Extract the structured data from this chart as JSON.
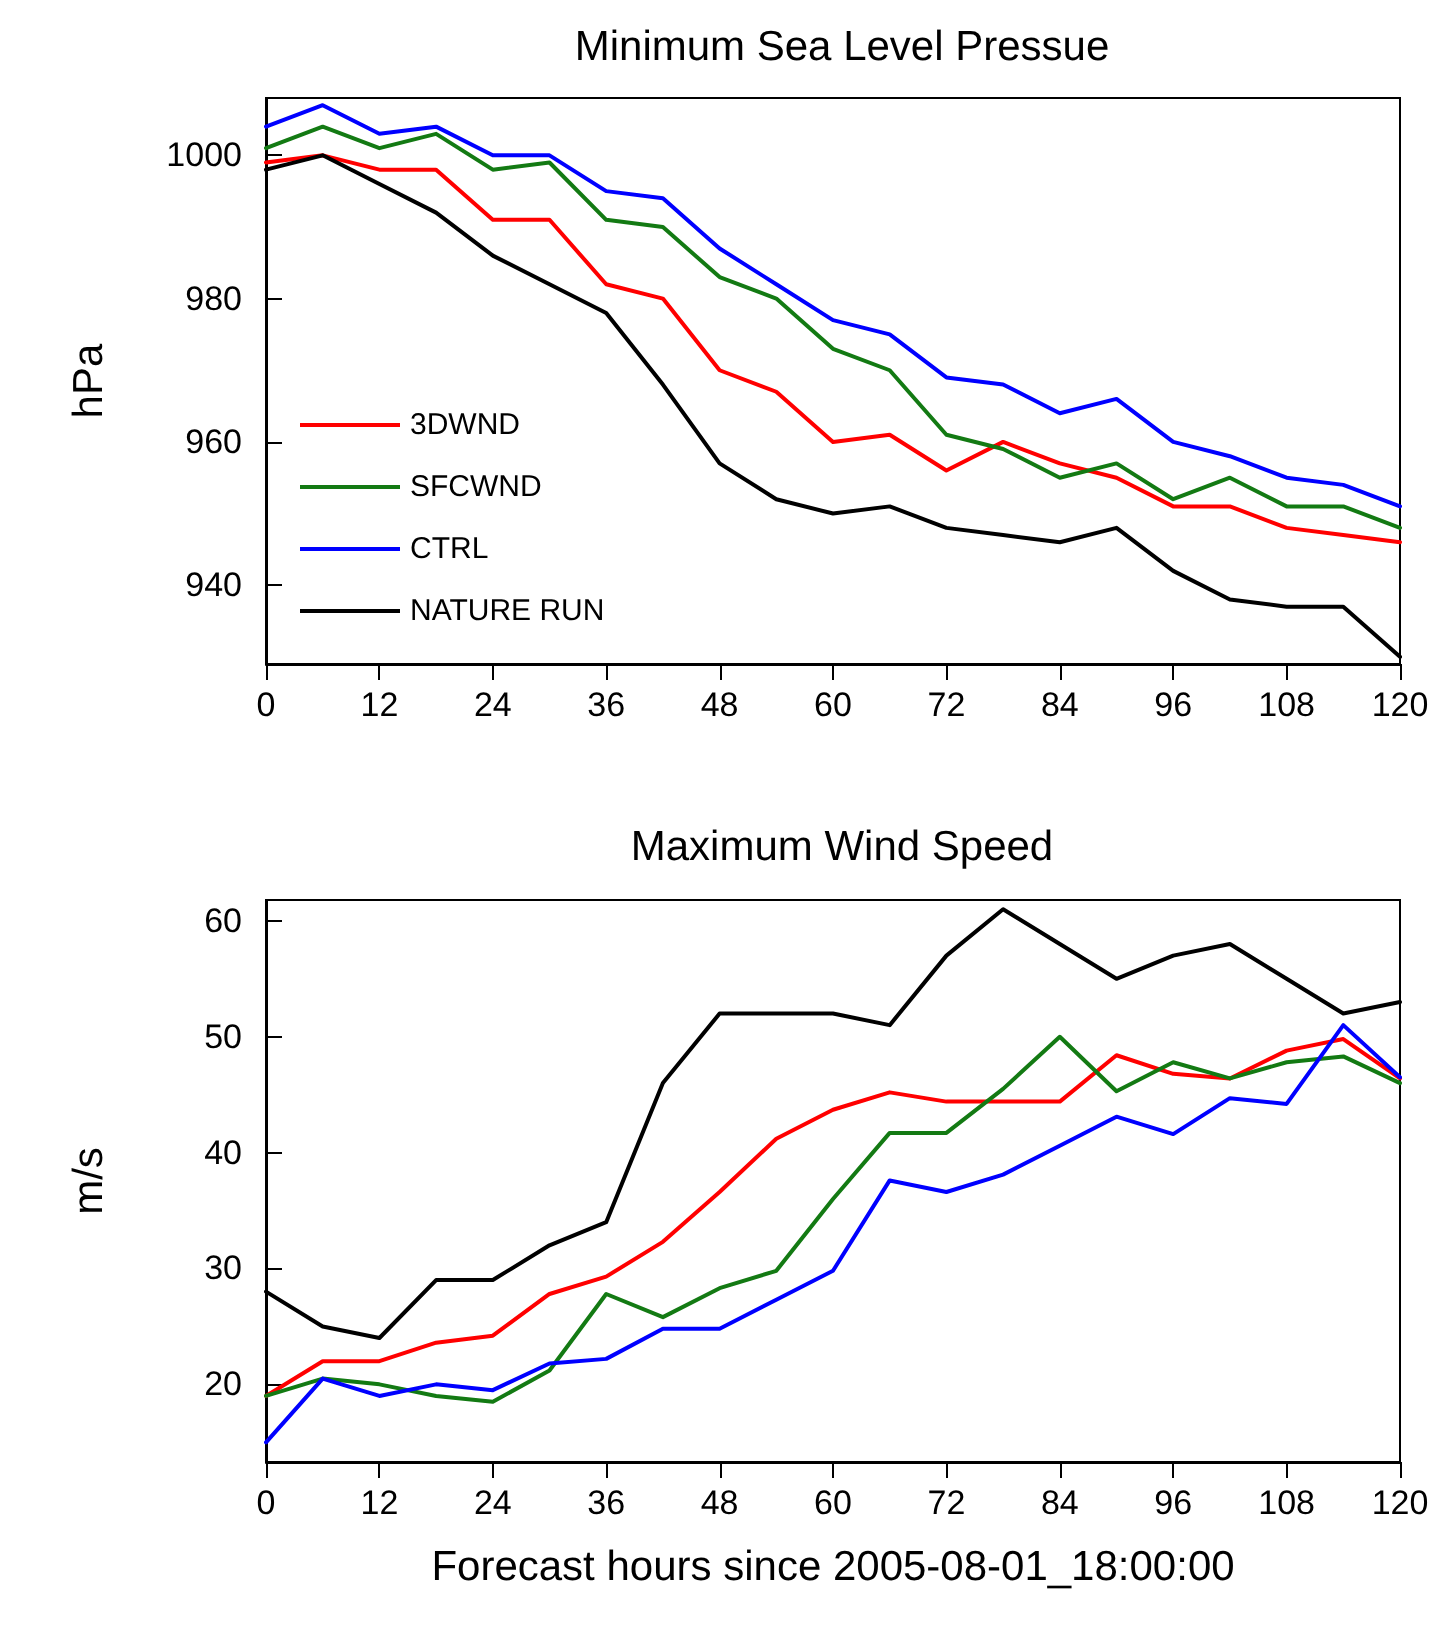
{
  "chart_data": [
    {
      "type": "line",
      "title": "Minimum Sea Level Pressue",
      "ylabel": "hPa",
      "x": [
        0,
        6,
        12,
        18,
        24,
        30,
        36,
        42,
        48,
        54,
        60,
        66,
        72,
        78,
        84,
        90,
        96,
        102,
        108,
        114,
        120
      ],
      "xlim": [
        0,
        120
      ],
      "xticks": [
        0,
        12,
        24,
        36,
        48,
        60,
        72,
        84,
        96,
        108,
        120
      ],
      "ylim": [
        929,
        1008
      ],
      "yticks": [
        940,
        960,
        980,
        1000
      ],
      "legend": "left",
      "grid": false,
      "marker": "none",
      "line_style": "solid",
      "series": [
        {
          "name": "3DWND",
          "color": "#ff0000",
          "values": [
            999,
            1000,
            998,
            998,
            991,
            991,
            982,
            980,
            970,
            967,
            960,
            961,
            956,
            960,
            957,
            955,
            951,
            951,
            948,
            947,
            946
          ]
        },
        {
          "name": "SFCWND",
          "color": "#137a13",
          "values": [
            1001,
            1004,
            1001,
            1003,
            998,
            999,
            991,
            990,
            983,
            980,
            973,
            970,
            961,
            959,
            955,
            957,
            952,
            955,
            951,
            951,
            948
          ]
        },
        {
          "name": "CTRL",
          "color": "#0000ff",
          "values": [
            1004,
            1007,
            1003,
            1004,
            1000,
            1000,
            995,
            994,
            987,
            982,
            977,
            975,
            969,
            968,
            964,
            966,
            960,
            958,
            955,
            954,
            951
          ]
        },
        {
          "name": "NATURE RUN",
          "color": "#000000",
          "values": [
            998,
            1000,
            996,
            992,
            986,
            982,
            978,
            968,
            957,
            952,
            950,
            951,
            948,
            947,
            946,
            948,
            942,
            938,
            937,
            937,
            930
          ]
        }
      ]
    },
    {
      "type": "line",
      "title": "Maximum Wind Speed",
      "ylabel": "m/s",
      "xlabel": "Forecast hours since 2005-08-01_18:00:00",
      "x": [
        0,
        6,
        12,
        18,
        24,
        30,
        36,
        42,
        48,
        54,
        60,
        66,
        72,
        78,
        84,
        90,
        96,
        102,
        108,
        114,
        120
      ],
      "xlim": [
        0,
        120
      ],
      "xticks": [
        0,
        12,
        24,
        36,
        48,
        60,
        72,
        84,
        96,
        108,
        120
      ],
      "ylim": [
        13.3,
        61.8
      ],
      "yticks": [
        20,
        30,
        40,
        50,
        60
      ],
      "legend": false,
      "grid": false,
      "marker": "none",
      "line_style": "solid",
      "series": [
        {
          "color": "#ff0000",
          "values": [
            19,
            22,
            22,
            23.6,
            24.2,
            27.8,
            29.3,
            32.3,
            36.6,
            41.2,
            43.7,
            45.2,
            44.4,
            44.4,
            44.4,
            48.4,
            46.8,
            46.4,
            48.8,
            49.8,
            46.4
          ]
        },
        {
          "color": "#137a13",
          "values": [
            19,
            20.5,
            20,
            19,
            18.5,
            21.2,
            27.8,
            25.8,
            28.3,
            29.8,
            36,
            41.7,
            41.7,
            45.5,
            50,
            45.3,
            47.8,
            46.4,
            47.8,
            48.3,
            46
          ]
        },
        {
          "color": "#0000ff",
          "values": [
            15,
            20.5,
            19,
            20,
            19.5,
            21.8,
            22.2,
            24.8,
            24.8,
            27.3,
            29.8,
            37.6,
            36.6,
            38.1,
            40.6,
            43.1,
            41.6,
            44.7,
            44.2,
            51,
            46.5
          ]
        },
        {
          "color": "#000000",
          "values": [
            28,
            25,
            24,
            29,
            29,
            32,
            34,
            46,
            52,
            52,
            52,
            51,
            57,
            61,
            58,
            55,
            57,
            58,
            55,
            52,
            53
          ]
        }
      ]
    }
  ]
}
